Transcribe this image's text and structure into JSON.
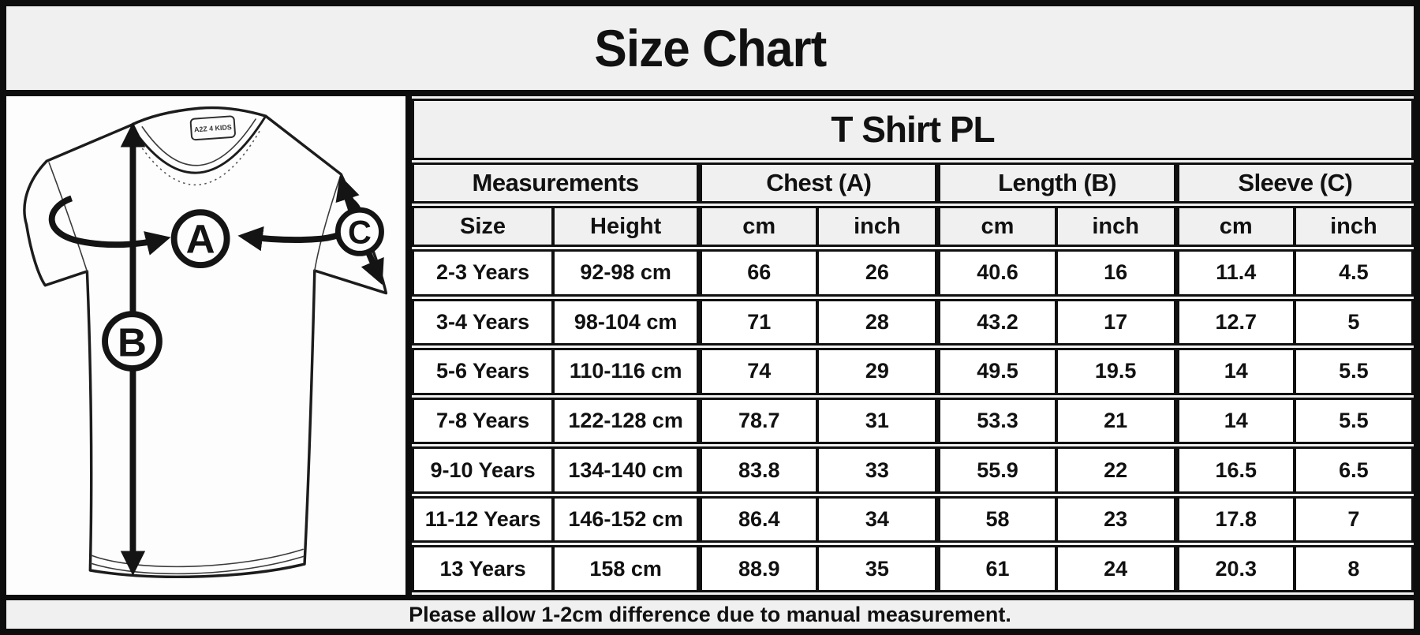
{
  "page": {
    "title": "Size Chart"
  },
  "diagram": {
    "brand_tag": "A2Z 4 KIDS",
    "markers": {
      "chest": "A",
      "length": "B",
      "sleeve": "C"
    }
  },
  "table": {
    "title": "T Shirt PL",
    "groups": [
      "Measurements",
      "Chest (A)",
      "Length (B)",
      "Sleeve (C)"
    ],
    "columns": [
      "Size",
      "Height",
      "cm",
      "inch",
      "cm",
      "inch",
      "cm",
      "inch"
    ],
    "rows": [
      [
        "2-3 Years",
        "92-98 cm",
        "66",
        "26",
        "40.6",
        "16",
        "11.4",
        "4.5"
      ],
      [
        "3-4 Years",
        "98-104 cm",
        "71",
        "28",
        "43.2",
        "17",
        "12.7",
        "5"
      ],
      [
        "5-6 Years",
        "110-116 cm",
        "74",
        "29",
        "49.5",
        "19.5",
        "14",
        "5.5"
      ],
      [
        "7-8 Years",
        "122-128 cm",
        "78.7",
        "31",
        "53.3",
        "21",
        "14",
        "5.5"
      ],
      [
        "9-10 Years",
        "134-140 cm",
        "83.8",
        "33",
        "55.9",
        "22",
        "16.5",
        "6.5"
      ],
      [
        "11-12 Years",
        "146-152 cm",
        "86.4",
        "34",
        "58",
        "23",
        "17.8",
        "7"
      ],
      [
        "13 Years",
        "158 cm",
        "88.9",
        "35",
        "61",
        "24",
        "20.3",
        "8"
      ]
    ]
  },
  "footer": {
    "note": "Please allow 1-2cm difference due to manual measurement."
  },
  "colors": {
    "page_bg": "#f0f0f0",
    "panel_bg": "#fdfdfd",
    "cell_bg": "#ffffff",
    "border": "#101010",
    "text": "#111111"
  }
}
